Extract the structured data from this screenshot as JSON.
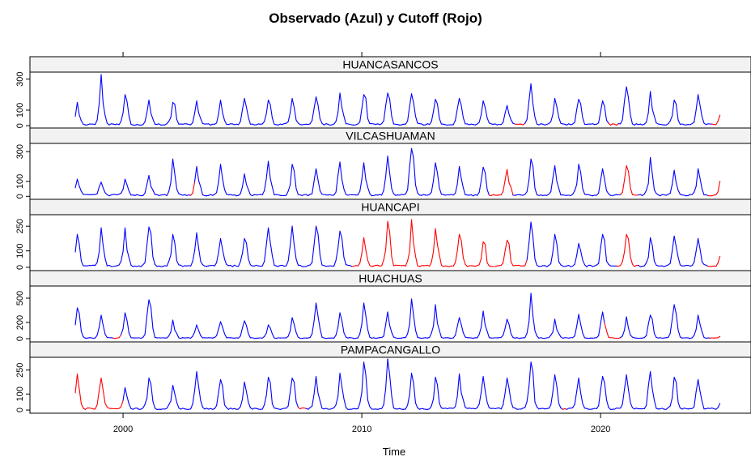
{
  "chart_data": {
    "type": "line",
    "title": "Observado (Azul) y Cutoff (Rojo)",
    "xlabel": "Time",
    "ylabel": "",
    "xlim": [
      1996.1,
      2026.3
    ],
    "x_ticks": [
      2000,
      2010,
      2020
    ],
    "legend": "none",
    "colors": {
      "observed": "#0000ff",
      "cutoff": "#ff0000",
      "strip_bg": "#f2f2f2"
    },
    "panels": [
      {
        "name": "HUANCASANCOS",
        "ylim": [
          -15,
          345
        ],
        "y_ticks": [
          0,
          100,
          300
        ],
        "peaks": [
          [
            1998.1,
            150
          ],
          [
            1999.1,
            330
          ],
          [
            2000.1,
            200
          ],
          [
            2001.1,
            165
          ],
          [
            2002.1,
            150
          ],
          [
            2003.1,
            160
          ],
          [
            2004.1,
            165
          ],
          [
            2005.1,
            175
          ],
          [
            2006.1,
            165
          ],
          [
            2007.1,
            175
          ],
          [
            2008.1,
            185
          ],
          [
            2009.1,
            210
          ],
          [
            2010.1,
            200
          ],
          [
            2011.1,
            210
          ],
          [
            2012.1,
            205
          ],
          [
            2013.1,
            170
          ],
          [
            2014.1,
            175
          ],
          [
            2015.1,
            160
          ],
          [
            2016.1,
            130
          ],
          [
            2017.1,
            270
          ],
          [
            2018.1,
            175
          ],
          [
            2019.1,
            170
          ],
          [
            2020.1,
            160
          ],
          [
            2021.1,
            250
          ],
          [
            2022.1,
            220
          ],
          [
            2023.1,
            165
          ],
          [
            2024.1,
            200
          ],
          [
            2025.1,
            185
          ]
        ],
        "cutoff_segments": [
          [
            2016.4,
            2016.8
          ],
          [
            2020.35,
            2020.75
          ],
          [
            2024.65,
            2025.0
          ]
        ]
      },
      {
        "name": "VILCASHUAMAN",
        "ylim": [
          -20,
          355
        ],
        "y_ticks": [
          0,
          100,
          300
        ],
        "peaks": [
          [
            1998.1,
            115
          ],
          [
            1999.1,
            95
          ],
          [
            2000.1,
            115
          ],
          [
            2001.1,
            140
          ],
          [
            2002.1,
            250
          ],
          [
            2003.1,
            200
          ],
          [
            2004.1,
            215
          ],
          [
            2005.1,
            150
          ],
          [
            2006.1,
            235
          ],
          [
            2007.1,
            215
          ],
          [
            2008.1,
            185
          ],
          [
            2009.1,
            230
          ],
          [
            2010.1,
            225
          ],
          [
            2011.1,
            270
          ],
          [
            2012.1,
            320
          ],
          [
            2013.1,
            225
          ],
          [
            2014.1,
            200
          ],
          [
            2015.1,
            195
          ],
          [
            2016.1,
            180
          ],
          [
            2017.1,
            250
          ],
          [
            2018.1,
            205
          ],
          [
            2019.1,
            215
          ],
          [
            2020.1,
            185
          ],
          [
            2021.1,
            205
          ],
          [
            2022.1,
            260
          ],
          [
            2023.1,
            175
          ],
          [
            2024.1,
            185
          ],
          [
            2025.1,
            200
          ]
        ],
        "cutoff_segments": [
          [
            2002.8,
            2003.0
          ],
          [
            2015.3,
            2016.3
          ],
          [
            2020.8,
            2021.6
          ],
          [
            2024.5,
            2025.0
          ]
        ]
      },
      {
        "name": "HUANCAPI",
        "ylim": [
          -20,
          320
        ],
        "y_ticks": [
          0,
          100,
          250
        ],
        "peaks": [
          [
            1998.1,
            200
          ],
          [
            1999.1,
            240
          ],
          [
            2000.1,
            240
          ],
          [
            2001.1,
            245
          ],
          [
            2002.1,
            200
          ],
          [
            2003.1,
            210
          ],
          [
            2004.1,
            175
          ],
          [
            2005.1,
            175
          ],
          [
            2006.1,
            240
          ],
          [
            2007.1,
            250
          ],
          [
            2008.1,
            250
          ],
          [
            2009.1,
            220
          ],
          [
            2010.1,
            180
          ],
          [
            2011.1,
            280
          ],
          [
            2012.1,
            290
          ],
          [
            2013.1,
            235
          ],
          [
            2014.1,
            200
          ],
          [
            2015.1,
            155
          ],
          [
            2016.1,
            165
          ],
          [
            2017.1,
            275
          ],
          [
            2018.1,
            200
          ],
          [
            2019.1,
            145
          ],
          [
            2020.1,
            200
          ],
          [
            2021.1,
            200
          ],
          [
            2022.1,
            180
          ],
          [
            2023.1,
            190
          ],
          [
            2024.1,
            175
          ],
          [
            2025.1,
            190
          ]
        ],
        "cutoff_segments": [
          [
            2009.6,
            2016.9
          ],
          [
            2020.7,
            2021.6
          ],
          [
            2024.5,
            2025.0
          ]
        ]
      },
      {
        "name": "HUACHUAS",
        "ylim": [
          -40,
          650
        ],
        "y_ticks": [
          0,
          200,
          500
        ],
        "peaks": [
          [
            1998.1,
            380
          ],
          [
            1999.1,
            290
          ],
          [
            2000.1,
            320
          ],
          [
            2001.1,
            480
          ],
          [
            2002.1,
            230
          ],
          [
            2003.1,
            170
          ],
          [
            2004.1,
            210
          ],
          [
            2005.1,
            220
          ],
          [
            2006.1,
            170
          ],
          [
            2007.1,
            260
          ],
          [
            2008.1,
            440
          ],
          [
            2009.1,
            320
          ],
          [
            2010.1,
            440
          ],
          [
            2011.1,
            330
          ],
          [
            2012.1,
            490
          ],
          [
            2013.1,
            420
          ],
          [
            2014.1,
            260
          ],
          [
            2015.1,
            340
          ],
          [
            2016.1,
            240
          ],
          [
            2017.1,
            560
          ],
          [
            2018.1,
            240
          ],
          [
            2019.1,
            300
          ],
          [
            2020.1,
            330
          ],
          [
            2021.1,
            270
          ],
          [
            2022.1,
            290
          ],
          [
            2023.1,
            420
          ],
          [
            2024.1,
            290
          ],
          [
            2025.1,
            50
          ]
        ],
        "cutoff_segments": [
          [
            1999.6,
            1999.9
          ],
          [
            2020.2,
            2020.8
          ],
          [
            2024.6,
            2025.0
          ]
        ]
      },
      {
        "name": "PAMPACANGALLO",
        "ylim": [
          -20,
          330
        ],
        "y_ticks": [
          0,
          100,
          250
        ],
        "peaks": [
          [
            1998.1,
            225
          ],
          [
            1999.1,
            200
          ],
          [
            2000.1,
            140
          ],
          [
            2001.1,
            200
          ],
          [
            2002.1,
            155
          ],
          [
            2003.1,
            240
          ],
          [
            2004.1,
            190
          ],
          [
            2005.1,
            175
          ],
          [
            2006.1,
            205
          ],
          [
            2007.1,
            200
          ],
          [
            2008.1,
            210
          ],
          [
            2009.1,
            230
          ],
          [
            2010.1,
            300
          ],
          [
            2011.1,
            320
          ],
          [
            2012.1,
            230
          ],
          [
            2013.1,
            205
          ],
          [
            2014.1,
            225
          ],
          [
            2015.1,
            210
          ],
          [
            2016.1,
            200
          ],
          [
            2017.1,
            300
          ],
          [
            2018.1,
            220
          ],
          [
            2019.1,
            200
          ],
          [
            2020.1,
            210
          ],
          [
            2021.1,
            220
          ],
          [
            2022.1,
            240
          ],
          [
            2023.1,
            205
          ],
          [
            2024.1,
            190
          ],
          [
            2025.1,
            120
          ]
        ],
        "cutoff_segments": [
          [
            1997.95,
            2000.0
          ],
          [
            2007.3,
            2007.7
          ],
          [
            2018.4,
            2018.6
          ]
        ]
      }
    ]
  }
}
